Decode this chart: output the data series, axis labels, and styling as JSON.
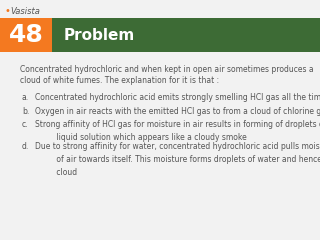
{
  "problem_number": "48",
  "header_title": "Problem",
  "orange_color": "#F47920",
  "green_color": "#3D6B35",
  "bg_color": "#F2F2F2",
  "text_color": "#555555",
  "intro_line1": "Concentrated hydrochloric and when kept in open air sometimes produces a",
  "intro_line2": "cloud of white fumes. The explanation for it is that :",
  "options": [
    "Concentrated hydrochloric acid emits strongly smelling HCl gas all the time",
    "Oxygen in air reacts with the emitted HCl gas to from a cloud of chlorine gas",
    "Strong affinity of HCl gas for moisture in air results in forming of droplets of\n      liquid solution which appears like a cloudy smoke",
    "Due to strong affinity for water, concentrated hydrochloric acid pulls moisture\n      of air towards itself. This moisture forms droplets of water and hence the\n      cloud"
  ],
  "option_labels": [
    "a.",
    "b.",
    "c.",
    "d."
  ],
  "logo_text": "☹Vasista",
  "logo_color": "#F47920",
  "white": "#FFFFFF",
  "fig_width": 3.2,
  "fig_height": 2.4,
  "dpi": 100
}
